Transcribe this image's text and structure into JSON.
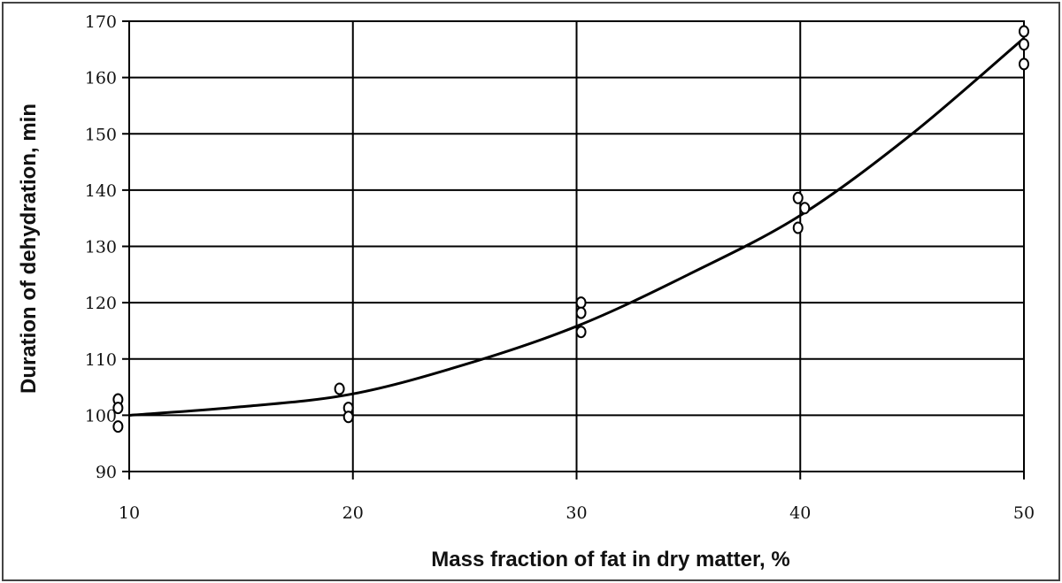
{
  "chart_data": {
    "type": "scatter",
    "title": "",
    "xlabel": "Mass fraction of fat in dry matter, %",
    "ylabel": "Duration of dehydration, min",
    "xlim": [
      10,
      50
    ],
    "ylim": [
      90,
      170
    ],
    "x_ticks": [
      "10",
      "20",
      "30",
      "40",
      "50"
    ],
    "y_ticks": [
      "90",
      "100",
      "110",
      "120",
      "130",
      "140",
      "150",
      "160",
      "170"
    ],
    "grid": true,
    "legend": "none",
    "points": [
      {
        "x": 9.5,
        "y": 102.8
      },
      {
        "x": 9.5,
        "y": 101.3
      },
      {
        "x": 9.5,
        "y": 98.0
      },
      {
        "x": 19.4,
        "y": 104.7
      },
      {
        "x": 19.8,
        "y": 101.3
      },
      {
        "x": 19.8,
        "y": 99.7
      },
      {
        "x": 30.2,
        "y": 120.0
      },
      {
        "x": 30.2,
        "y": 118.2
      },
      {
        "x": 30.2,
        "y": 114.8
      },
      {
        "x": 39.9,
        "y": 138.6
      },
      {
        "x": 40.2,
        "y": 136.8
      },
      {
        "x": 39.9,
        "y": 133.3
      },
      {
        "x": 50.0,
        "y": 168.2
      },
      {
        "x": 50.0,
        "y": 165.9
      },
      {
        "x": 50.0,
        "y": 162.4
      }
    ],
    "trend_line": {
      "x": [
        10,
        15,
        20,
        25,
        30,
        35,
        40,
        45,
        50
      ],
      "y": [
        100.0,
        101.5,
        103.8,
        109.0,
        115.8,
        125.0,
        135.5,
        150.0,
        167.0
      ]
    },
    "colors": {
      "marker": "#000000",
      "line": "#000000",
      "grid": "#000000"
    }
  }
}
